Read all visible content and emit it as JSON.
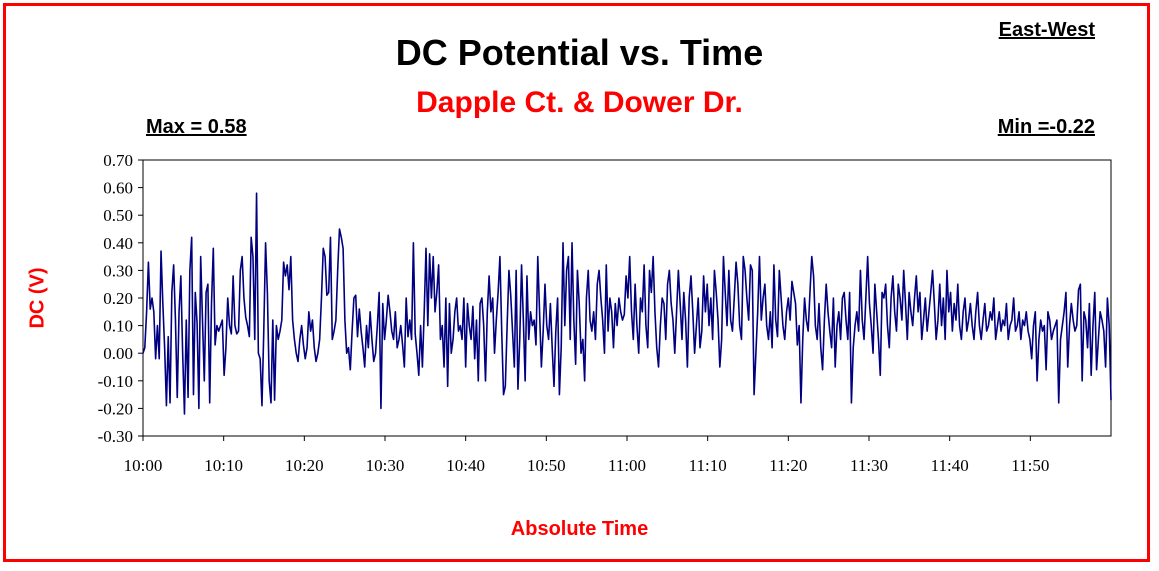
{
  "chart_data": {
    "type": "line",
    "title": "DC Potential vs. Time",
    "subtitle": "Dapple Ct. & Dower Dr.",
    "orientation_label": "East-West",
    "max_label": "Max = 0.58",
    "min_label": "Min =-0.22",
    "xlabel": "Absolute Time",
    "ylabel": "DC (V)",
    "ylim": [
      -0.3,
      0.7
    ],
    "ytick_step": 0.1,
    "yticks": [
      "0.70",
      "0.60",
      "0.50",
      "0.40",
      "0.30",
      "0.20",
      "0.10",
      "0.00",
      "-0.10",
      "-0.20",
      "-0.30"
    ],
    "xticks": [
      "10:00",
      "10:10",
      "10:20",
      "10:30",
      "10:40",
      "10:50",
      "11:00",
      "11:10",
      "11:20",
      "11:30",
      "11:40",
      "11:50"
    ],
    "xlim": [
      "10:00",
      "12:00"
    ],
    "grid": false,
    "legend": "none",
    "series_color": "#000080",
    "series": [
      {
        "x_start": "10:00",
        "x_end": "12:00",
        "values": [
          0.0,
          0.02,
          0.15,
          0.33,
          0.16,
          0.2,
          0.15,
          -0.02,
          0.1,
          -0.02,
          0.37,
          0.18,
          0.02,
          -0.19,
          0.06,
          -0.18,
          0.22,
          0.32,
          0.12,
          -0.16,
          0.15,
          0.28,
          0.0,
          -0.22,
          0.12,
          -0.16,
          0.3,
          0.42,
          -0.15,
          0.22,
          0.11,
          -0.2,
          0.35,
          0.12,
          -0.1,
          0.22,
          0.25,
          -0.18,
          0.18,
          0.38,
          0.03,
          0.1,
          0.08,
          0.1,
          0.12,
          -0.08,
          0.02,
          0.2,
          0.1,
          0.07,
          0.28,
          0.1,
          0.07,
          0.08,
          0.3,
          0.35,
          0.2,
          0.13,
          0.1,
          0.06,
          0.42,
          0.35,
          0.05,
          0.58,
          0.0,
          -0.02,
          -0.19,
          0.08,
          0.4,
          0.22,
          -0.1,
          -0.18,
          0.12,
          -0.17,
          0.1,
          0.05,
          0.08,
          0.12,
          0.33,
          0.28,
          0.32,
          0.23,
          0.35,
          0.12,
          0.05,
          0.0,
          -0.03,
          0.05,
          0.1,
          0.03,
          -0.02,
          0.02,
          0.15,
          0.08,
          0.12,
          0.02,
          -0.03,
          0.0,
          0.05,
          0.2,
          0.38,
          0.35,
          0.21,
          0.22,
          0.42,
          0.05,
          0.08,
          0.12,
          0.3,
          0.45,
          0.42,
          0.38,
          0.12,
          0.0,
          0.02,
          -0.06,
          0.08,
          0.2,
          0.21,
          0.06,
          0.16,
          0.08,
          0.02,
          -0.05,
          0.1,
          0.02,
          0.15,
          0.05,
          -0.03,
          0.0,
          0.1,
          0.22,
          -0.2,
          0.18,
          0.05,
          0.12,
          0.21,
          0.15,
          0.08,
          0.05,
          0.15,
          0.02,
          0.05,
          0.1,
          0.03,
          -0.05,
          0.2,
          0.06,
          0.12,
          0.05,
          0.4,
          0.07,
          0.0,
          -0.08,
          0.1,
          -0.05,
          0.15,
          0.38,
          0.1,
          0.36,
          0.2,
          0.35,
          0.15,
          0.22,
          0.32,
          0.05,
          0.1,
          -0.05,
          0.2,
          -0.12,
          0.18,
          0.0,
          0.05,
          0.15,
          0.2,
          0.08,
          0.1,
          0.05,
          0.2,
          -0.05,
          0.18,
          0.1,
          0.05,
          0.17,
          -0.02,
          0.12,
          -0.1,
          0.18,
          0.2,
          0.1,
          -0.1,
          0.15,
          0.28,
          0.15,
          0.2,
          0.0,
          0.12,
          0.22,
          0.35,
          0.08,
          -0.15,
          -0.12,
          0.1,
          0.3,
          0.21,
          0.08,
          -0.05,
          0.3,
          -0.13,
          0.05,
          0.32,
          0.12,
          -0.1,
          0.28,
          0.05,
          0.15,
          0.1,
          0.12,
          0.03,
          0.35,
          0.15,
          -0.05,
          0.08,
          0.25,
          0.1,
          0.05,
          0.18,
          0.02,
          -0.12,
          0.08,
          0.2,
          -0.15,
          0.02,
          0.4,
          0.1,
          0.3,
          0.35,
          0.05,
          0.4,
          0.12,
          -0.04,
          0.3,
          0.18,
          0.0,
          0.05,
          -0.1,
          0.2,
          0.3,
          0.12,
          0.08,
          0.15,
          0.05,
          0.25,
          0.3,
          0.2,
          0.12,
          0.0,
          0.32,
          0.08,
          0.2,
          0.15,
          0.02,
          0.18,
          0.1,
          0.2,
          0.15,
          0.12,
          0.14,
          0.28,
          0.2,
          0.35,
          0.15,
          0.05,
          0.25,
          0.1,
          0.0,
          0.2,
          0.15,
          0.32,
          0.1,
          0.02,
          0.3,
          0.22,
          0.35,
          0.15,
          0.02,
          -0.05,
          0.1,
          0.2,
          0.18,
          0.05,
          0.25,
          0.3,
          0.18,
          0.12,
          0.0,
          0.15,
          0.3,
          0.18,
          0.05,
          0.22,
          0.12,
          -0.05,
          0.2,
          0.28,
          0.15,
          0.0,
          0.1,
          0.2,
          0.02,
          0.08,
          0.28,
          0.15,
          0.25,
          0.1,
          0.2,
          0.05,
          0.3,
          0.22,
          0.12,
          -0.05,
          0.05,
          0.35,
          0.22,
          0.1,
          0.3,
          0.12,
          0.08,
          0.2,
          0.33,
          0.25,
          0.1,
          0.05,
          0.35,
          0.3,
          0.2,
          0.12,
          0.32,
          0.3,
          -0.15,
          0.0,
          0.15,
          0.35,
          0.12,
          0.2,
          0.25,
          0.1,
          0.05,
          0.15,
          0.02,
          0.32,
          0.12,
          0.06,
          0.3,
          0.2,
          0.1,
          0.05,
          0.15,
          0.2,
          0.12,
          0.26,
          0.22,
          0.18,
          0.03,
          0.1,
          -0.18,
          0.05,
          0.2,
          0.12,
          0.08,
          0.22,
          0.35,
          0.28,
          0.1,
          0.05,
          0.18,
          0.02,
          -0.06,
          0.12,
          0.25,
          0.15,
          0.08,
          0.02,
          0.2,
          -0.05,
          0.1,
          0.15,
          0.05,
          0.2,
          0.22,
          0.12,
          0.05,
          0.22,
          -0.18,
          0.02,
          0.1,
          0.15,
          0.08,
          0.3,
          0.12,
          0.05,
          0.2,
          0.35,
          0.18,
          0.1,
          0.0,
          0.25,
          0.15,
          0.05,
          -0.08,
          0.22,
          0.2,
          0.25,
          0.1,
          0.02,
          0.2,
          0.28,
          0.15,
          0.08,
          0.25,
          0.2,
          0.12,
          0.3,
          0.18,
          0.05,
          0.22,
          0.15,
          0.1,
          0.2,
          0.28,
          0.15,
          0.22,
          0.05,
          0.12,
          0.2,
          0.08,
          0.15,
          0.22,
          0.3,
          0.18,
          0.05,
          0.12,
          0.25,
          0.1,
          0.2,
          0.05,
          0.3,
          0.15,
          0.22,
          0.08,
          0.18,
          0.12,
          0.25,
          0.1,
          0.05,
          0.15,
          0.2,
          0.08,
          0.12,
          0.18,
          0.1,
          0.05,
          0.15,
          0.22,
          0.1,
          0.05,
          0.12,
          0.18,
          0.08,
          0.1,
          0.15,
          0.12,
          0.2,
          0.05,
          0.1,
          0.15,
          0.08,
          0.12,
          0.1,
          0.18,
          0.05,
          0.1,
          0.12,
          0.2,
          0.08,
          0.1,
          0.15,
          0.05,
          0.12,
          0.1,
          0.15,
          0.08,
          0.05,
          -0.02,
          0.1,
          0.15,
          -0.1,
          0.05,
          0.12,
          0.08,
          0.1,
          -0.06,
          0.15,
          0.12,
          0.05,
          0.08,
          0.1,
          0.12,
          -0.18,
          0.05,
          0.1,
          0.15,
          0.22,
          -0.05,
          0.1,
          0.18,
          0.12,
          0.08,
          0.1,
          0.23,
          0.25,
          -0.1,
          0.15,
          0.12,
          0.02,
          0.18,
          -0.08,
          0.1,
          0.22,
          -0.06,
          0.05,
          0.15,
          0.12,
          0.08,
          -0.05,
          0.2,
          0.1,
          -0.17
        ]
      }
    ]
  },
  "colors": {
    "frame": "#ff0000",
    "subtitle": "#ff0000",
    "axis_title": "#ff0000",
    "series": "#000080"
  }
}
